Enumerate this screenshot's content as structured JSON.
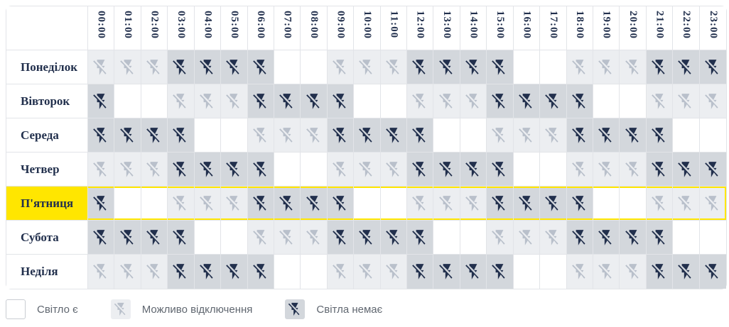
{
  "table": {
    "hours": [
      "00:00",
      "01:00",
      "02:00",
      "03:00",
      "04:00",
      "05:00",
      "06:00",
      "07:00",
      "08:00",
      "09:00",
      "10:00",
      "11:00",
      "12:00",
      "13:00",
      "14:00",
      "15:00",
      "16:00",
      "17:00",
      "18:00",
      "19:00",
      "20:00",
      "21:00",
      "22:00",
      "23:00"
    ],
    "rows": [
      {
        "label": "Понеділок",
        "highlight": false,
        "states": [
          "maybe",
          "maybe",
          "maybe",
          "off",
          "off",
          "off",
          "off",
          "on",
          "on",
          "maybe",
          "maybe",
          "maybe",
          "off",
          "off",
          "off",
          "off",
          "on",
          "on",
          "maybe",
          "maybe",
          "maybe",
          "off",
          "off",
          "off"
        ]
      },
      {
        "label": "Вівторок",
        "highlight": false,
        "states": [
          "off",
          "on",
          "on",
          "maybe",
          "maybe",
          "maybe",
          "off",
          "off",
          "off",
          "off",
          "on",
          "on",
          "maybe",
          "maybe",
          "maybe",
          "off",
          "off",
          "off",
          "off",
          "on",
          "on",
          "maybe",
          "maybe",
          "maybe"
        ]
      },
      {
        "label": "Середа",
        "highlight": false,
        "states": [
          "off",
          "off",
          "off",
          "off",
          "on",
          "on",
          "maybe",
          "maybe",
          "maybe",
          "off",
          "off",
          "off",
          "off",
          "on",
          "on",
          "maybe",
          "maybe",
          "maybe",
          "off",
          "off",
          "off",
          "off",
          "on",
          "on"
        ]
      },
      {
        "label": "Четвер",
        "highlight": false,
        "states": [
          "maybe",
          "maybe",
          "maybe",
          "off",
          "off",
          "off",
          "off",
          "on",
          "on",
          "maybe",
          "maybe",
          "maybe",
          "off",
          "off",
          "off",
          "off",
          "on",
          "on",
          "maybe",
          "maybe",
          "maybe",
          "off",
          "off",
          "off"
        ]
      },
      {
        "label": "П'ятниця",
        "highlight": true,
        "states": [
          "off",
          "on",
          "on",
          "maybe",
          "maybe",
          "maybe",
          "off",
          "off",
          "off",
          "off",
          "on",
          "on",
          "maybe",
          "maybe",
          "maybe",
          "off",
          "off",
          "off",
          "off",
          "on",
          "on",
          "maybe",
          "maybe",
          "maybe"
        ]
      },
      {
        "label": "Субота",
        "highlight": false,
        "states": [
          "off",
          "off",
          "off",
          "off",
          "on",
          "on",
          "maybe",
          "maybe",
          "maybe",
          "off",
          "off",
          "off",
          "off",
          "on",
          "on",
          "maybe",
          "maybe",
          "maybe",
          "off",
          "off",
          "off",
          "off",
          "on",
          "on"
        ]
      },
      {
        "label": "Неділя",
        "highlight": false,
        "states": [
          "maybe",
          "maybe",
          "maybe",
          "off",
          "off",
          "off",
          "off",
          "on",
          "on",
          "maybe",
          "maybe",
          "maybe",
          "off",
          "off",
          "off",
          "off",
          "on",
          "on",
          "maybe",
          "maybe",
          "maybe",
          "off",
          "off",
          "off"
        ]
      }
    ]
  },
  "legend": {
    "items": [
      {
        "state": "on",
        "label": "Світло є"
      },
      {
        "state": "maybe",
        "label": "Можливо відключення"
      },
      {
        "state": "off",
        "label": "Світла немає"
      }
    ]
  },
  "colors": {
    "navy": "#22304d",
    "maybe_icon": "#b9c0cb",
    "off_bg": "#d3d7dc",
    "maybe_bg": "#eceef1",
    "highlight_yellow": "#ffe600",
    "grid_border": "#e2e4e8",
    "legend_text": "#606770"
  }
}
